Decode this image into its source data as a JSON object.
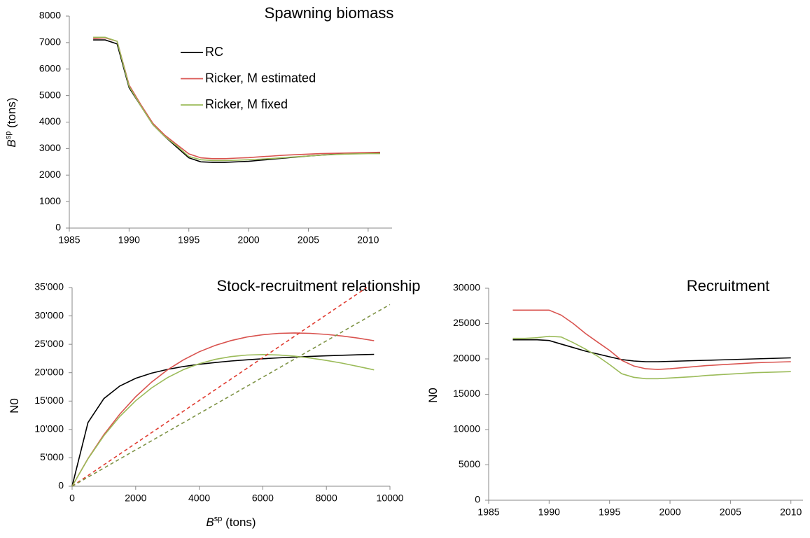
{
  "chart_data": [
    {
      "type": "line",
      "title": "Spawning biomass",
      "ylabel": [
        "B",
        "sp",
        " (tons)"
      ],
      "xlim": [
        1985,
        2012
      ],
      "xticks": [
        1985,
        1990,
        1995,
        2000,
        2005,
        2010
      ],
      "ylim": [
        0,
        8000
      ],
      "yticks": [
        0,
        1000,
        2000,
        3000,
        4000,
        5000,
        6000,
        7000,
        8000
      ],
      "legend": "upper-center",
      "x": [
        1987,
        1988,
        1989,
        1990,
        1991,
        1992,
        1993,
        1994,
        1995,
        1996,
        1997,
        1998,
        1999,
        2000,
        2001,
        2002,
        2003,
        2004,
        2005,
        2006,
        2007,
        2008,
        2009,
        2010,
        2011
      ],
      "series": [
        {
          "name": "RC",
          "color": "#000000",
          "values": [
            7100,
            7100,
            6950,
            5300,
            4600,
            3900,
            3450,
            3050,
            2650,
            2500,
            2480,
            2480,
            2500,
            2520,
            2560,
            2600,
            2640,
            2680,
            2720,
            2750,
            2780,
            2800,
            2820,
            2830,
            2830
          ]
        },
        {
          "name": "Ricker, M estimated",
          "color": "#d9534f",
          "values": [
            7150,
            7180,
            7050,
            5400,
            4650,
            3950,
            3500,
            3150,
            2800,
            2650,
            2620,
            2620,
            2640,
            2660,
            2690,
            2720,
            2750,
            2770,
            2790,
            2810,
            2820,
            2830,
            2840,
            2850,
            2860
          ]
        },
        {
          "name": "Ricker, M fixed",
          "color": "#9bbb59",
          "values": [
            7200,
            7200,
            7050,
            5350,
            4600,
            3900,
            3450,
            3100,
            2700,
            2580,
            2550,
            2550,
            2560,
            2580,
            2600,
            2630,
            2660,
            2690,
            2720,
            2750,
            2770,
            2790,
            2800,
            2810,
            2810
          ]
        }
      ]
    },
    {
      "type": "line",
      "title": "Stock-recruitment relationship",
      "ylabel": [
        "N0"
      ],
      "xlabel": [
        "B",
        "sp",
        " (tons)"
      ],
      "xlim": [
        0,
        10000
      ],
      "xticks": [
        0,
        2000,
        4000,
        6000,
        8000,
        10000
      ],
      "ylim": [
        0,
        35000
      ],
      "yticks": [
        0,
        {
          "value": 5000,
          "label": "5'000"
        },
        {
          "value": 10000,
          "label": "10'000"
        },
        {
          "value": 15000,
          "label": "15'000"
        },
        {
          "value": 20000,
          "label": "20'000"
        },
        {
          "value": 25000,
          "label": "25'000"
        },
        {
          "value": 30000,
          "label": "30'000"
        },
        {
          "value": 35000,
          "label": "35'000"
        }
      ],
      "series": [
        {
          "color": "#000000",
          "x": [
            0,
            500,
            1000,
            1500,
            2000,
            2500,
            3000,
            3500,
            4000,
            4500,
            5000,
            5500,
            6000,
            6500,
            7000,
            7500,
            8000,
            8500,
            9000,
            9500
          ],
          "values": [
            0,
            11227,
            15438,
            17643,
            19000,
            19919,
            20583,
            21085,
            21478,
            21794,
            22054,
            22270,
            22455,
            22613,
            22750,
            22870,
            22977,
            23072,
            23156,
            23233
          ]
        },
        {
          "color": "#d9534f",
          "x": [
            0,
            500,
            1000,
            1500,
            2000,
            2500,
            3000,
            3500,
            4000,
            4500,
            5000,
            5500,
            6000,
            6500,
            7000,
            7500,
            8000,
            8500,
            9000,
            9500
          ],
          "values": [
            0,
            4881,
            9090,
            12694,
            15759,
            18341,
            20490,
            22257,
            23684,
            24808,
            25662,
            26285,
            26699,
            26927,
            27002,
            26933,
            26749,
            26460,
            26092,
            25639
          ]
        },
        {
          "color": "#9bbb59",
          "x": [
            0,
            500,
            1000,
            1500,
            2000,
            2500,
            3000,
            3500,
            4000,
            4500,
            5000,
            5500,
            6000,
            6500,
            7000,
            7500,
            8000,
            8500,
            9000,
            9500
          ],
          "values": [
            0,
            4835,
            8897,
            12278,
            15061,
            17320,
            19123,
            20526,
            21583,
            22342,
            22838,
            23110,
            23199,
            23125,
            22910,
            22583,
            22164,
            21673,
            21103,
            20498
          ]
        },
        {
          "color": "#e03c31",
          "style": "dashed",
          "x": [
            0,
            9270
          ],
          "values": [
            0,
            35000
          ]
        },
        {
          "color": "#7f9447",
          "style": "dashed",
          "x": [
            0,
            10000
          ],
          "values": [
            0,
            32000
          ]
        }
      ]
    },
    {
      "type": "line",
      "title": "Recruitment",
      "ylabel": [
        "N0"
      ],
      "xlim": [
        1985,
        2011
      ],
      "xticks": [
        1985,
        1990,
        1995,
        2000,
        2005,
        2010
      ],
      "ylim": [
        0,
        30000
      ],
      "yticks": [
        0,
        5000,
        10000,
        15000,
        20000,
        25000,
        30000
      ],
      "x": [
        1987,
        1988,
        1989,
        1990,
        1991,
        1992,
        1993,
        1994,
        1995,
        1996,
        1997,
        1998,
        1999,
        2000,
        2001,
        2002,
        2003,
        2004,
        2005,
        2006,
        2007,
        2008,
        2009,
        2010
      ],
      "series": [
        {
          "color": "#000000",
          "values": [
            22700,
            22700,
            22700,
            22600,
            22100,
            21600,
            21100,
            20700,
            20300,
            19900,
            19700,
            19600,
            19600,
            19650,
            19700,
            19750,
            19800,
            19850,
            19900,
            19950,
            20000,
            20050,
            20100,
            20150
          ]
        },
        {
          "color": "#d9534f",
          "values": [
            26900,
            26900,
            26900,
            26900,
            26200,
            25000,
            23600,
            22400,
            21200,
            19800,
            19000,
            18600,
            18500,
            18600,
            18750,
            18900,
            19050,
            19150,
            19250,
            19350,
            19450,
            19500,
            19550,
            19600
          ]
        },
        {
          "color": "#9bbb59",
          "values": [
            22900,
            22900,
            23000,
            23200,
            23100,
            22300,
            21400,
            20400,
            19200,
            17900,
            17400,
            17200,
            17200,
            17300,
            17400,
            17500,
            17650,
            17750,
            17850,
            17950,
            18050,
            18100,
            18150,
            18200
          ]
        }
      ]
    }
  ]
}
